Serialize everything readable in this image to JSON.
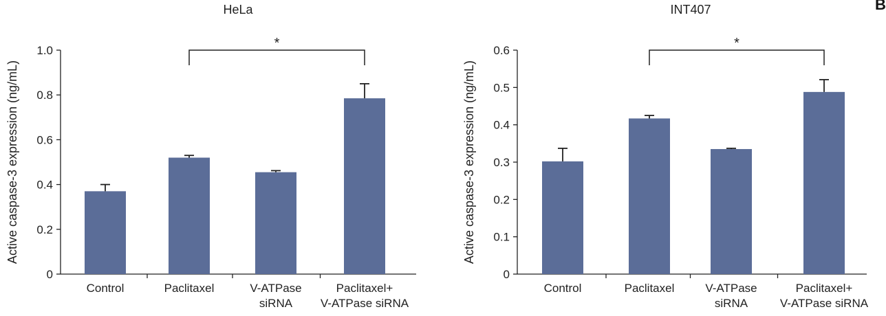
{
  "panel_letter": "B",
  "colors": {
    "bar": "#5b6d98",
    "axis": "#222222",
    "error": "#222222"
  },
  "chart_data": [
    {
      "type": "bar",
      "title": "HeLa",
      "ylabel": "Active caspase-3 expression (ng/mL)",
      "xlabel": "",
      "categories": [
        [
          "Control"
        ],
        [
          "Paclitaxel"
        ],
        [
          "V-ATPase",
          "siRNA"
        ],
        [
          "Paclitaxel+",
          "V-ATPase siRNA"
        ]
      ],
      "values": [
        0.37,
        0.52,
        0.455,
        0.785
      ],
      "errors": [
        0.03,
        0.01,
        0.007,
        0.065
      ],
      "ylim": [
        0,
        1.0
      ],
      "yticks": [
        0,
        0.2,
        0.4,
        0.6,
        0.8,
        1.0
      ],
      "ytick_labels": [
        "0",
        "0.2",
        "0.4",
        "0.6",
        "0.8",
        "1.0"
      ],
      "significance": {
        "from": 1,
        "to": 3,
        "label": "*"
      },
      "grid": false,
      "legend": "none"
    },
    {
      "type": "bar",
      "title": "INT407",
      "ylabel": "Active caspase-3 expression (ng/mL)",
      "xlabel": "",
      "categories": [
        [
          "Control"
        ],
        [
          "Paclitaxel"
        ],
        [
          "V-ATPase",
          "siRNA"
        ],
        [
          "Paclitaxel+",
          "V-ATPase siRNA"
        ]
      ],
      "values": [
        0.302,
        0.417,
        0.335,
        0.488
      ],
      "errors": [
        0.035,
        0.008,
        0.002,
        0.033
      ],
      "ylim": [
        0,
        0.6
      ],
      "yticks": [
        0,
        0.1,
        0.2,
        0.3,
        0.4,
        0.5,
        0.6
      ],
      "ytick_labels": [
        "0",
        "0.1",
        "0.2",
        "0.3",
        "0.4",
        "0.5",
        "0.6"
      ],
      "significance": {
        "from": 1,
        "to": 3,
        "label": "*"
      },
      "grid": false,
      "legend": "none"
    }
  ]
}
